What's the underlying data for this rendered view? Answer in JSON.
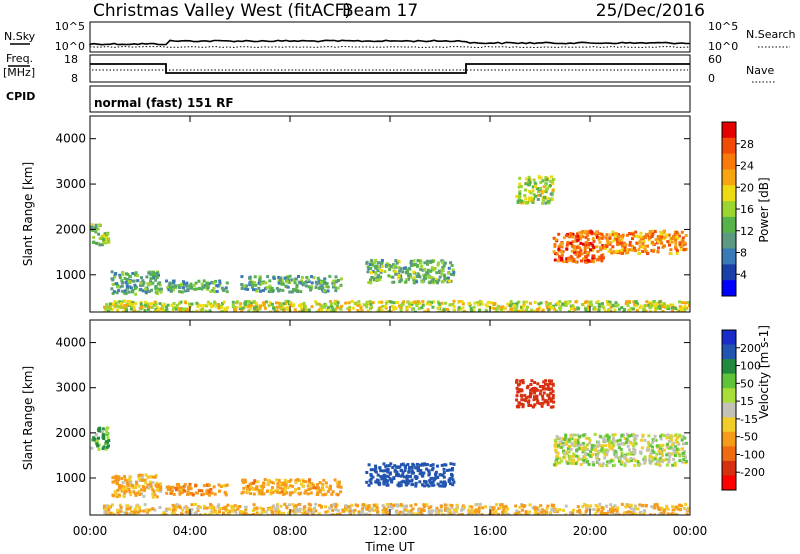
{
  "header": {
    "title": "Christmas Valley West (fitACF)",
    "beam": "Beam 17",
    "date": "25/Dec/2016"
  },
  "noise_panel": {
    "left_label": "N.Sky",
    "right_label": "N.Search",
    "left_ticks": [
      "10^5",
      "10^0"
    ],
    "right_ticks": [
      "10^5",
      "10^0"
    ]
  },
  "freq_panel": {
    "left_label_1": "Freq.",
    "left_label_2": "[MHz]",
    "right_label": "Nave",
    "left_ticks": [
      "18",
      "8"
    ],
    "right_ticks": [
      "60",
      "0"
    ]
  },
  "cpid": {
    "label": "CPID",
    "value": "normal (fast) 151 RF"
  },
  "colors": {
    "power_scale": [
      "#0000ff",
      "#1a3fa8",
      "#3a7ab8",
      "#5b9a80",
      "#56b34a",
      "#9ad531",
      "#eedb11",
      "#f6a511",
      "#f77a0a",
      "#f44a08",
      "#e50000"
    ],
    "velocity_scale": [
      "#1a2cc8",
      "#2255b0",
      "#228a3c",
      "#5fc43a",
      "#a8dd3a",
      "#c2c2b8",
      "#f3cd2a",
      "#f69a1a",
      "#f06a12",
      "#d63010",
      "#ff0000"
    ]
  },
  "chart_data": [
    {
      "type": "heatmap",
      "name": "power",
      "ylabel": "Slant Range [km]",
      "colorbar_label": "Power [dB]",
      "colorbar_ticks": [
        "4",
        "8",
        "12",
        "16",
        "20",
        "24",
        "28"
      ],
      "x_ticks": [
        "00:00",
        "04:00",
        "08:00",
        "12:00",
        "16:00",
        "20:00",
        "00:00"
      ],
      "xlim_hours": [
        0,
        24
      ],
      "y_ticks": [
        "1000",
        "2000",
        "3000",
        "4000"
      ],
      "ylim": [
        180,
        4500
      ],
      "blobs": [
        {
          "t0": 0.0,
          "t1": 0.7,
          "r0": 1650,
          "r1": 2150,
          "level": 0.45
        },
        {
          "t0": 0.8,
          "t1": 2.8,
          "r0": 600,
          "r1": 1100,
          "level": 0.35
        },
        {
          "t0": 3.0,
          "t1": 5.5,
          "r0": 650,
          "r1": 900,
          "level": 0.35
        },
        {
          "t0": 6.0,
          "t1": 10.0,
          "r0": 650,
          "r1": 1000,
          "level": 0.35
        },
        {
          "t0": 11.0,
          "t1": 14.5,
          "r0": 850,
          "r1": 1350,
          "level": 0.4
        },
        {
          "t0": 17.0,
          "t1": 18.5,
          "r0": 2600,
          "r1": 3200,
          "level": 0.5
        },
        {
          "t0": 18.5,
          "t1": 20.5,
          "r0": 1300,
          "r1": 2000,
          "level": 0.85
        },
        {
          "t0": 20.5,
          "t1": 23.8,
          "r0": 1500,
          "r1": 2000,
          "level": 0.75
        },
        {
          "t0": 0.5,
          "t1": 24.0,
          "r0": 180,
          "r1": 450,
          "level": 0.55
        }
      ]
    },
    {
      "type": "heatmap",
      "name": "velocity",
      "ylabel": "Slant Range [km]",
      "colorbar_label": "Velocity [m s-1]",
      "colorbar_ticks": [
        "200",
        "100",
        "50",
        "15",
        "-15",
        "-50",
        "-100",
        "-200"
      ],
      "x_ticks": [
        "00:00",
        "04:00",
        "08:00",
        "12:00",
        "16:00",
        "20:00",
        "00:00"
      ],
      "xlabel": "Time UT",
      "xlim_hours": [
        0,
        24
      ],
      "y_ticks": [
        "1000",
        "2000",
        "3000",
        "4000"
      ],
      "ylim": [
        180,
        4500
      ],
      "blobs": [
        {
          "t0": 0.0,
          "t1": 0.7,
          "r0": 1650,
          "r1": 2150,
          "vel": 30
        },
        {
          "t0": 0.8,
          "t1": 2.8,
          "r0": 600,
          "r1": 1100,
          "vel": -40
        },
        {
          "t0": 3.0,
          "t1": 5.5,
          "r0": 650,
          "r1": 900,
          "vel": -60
        },
        {
          "t0": 6.0,
          "t1": 10.0,
          "r0": 650,
          "r1": 1000,
          "vel": -50
        },
        {
          "t0": 11.0,
          "t1": 14.5,
          "r0": 850,
          "r1": 1350,
          "vel": 120
        },
        {
          "t0": 17.0,
          "t1": 18.5,
          "r0": 2600,
          "r1": 3200,
          "vel": -220
        },
        {
          "t0": 18.5,
          "t1": 23.8,
          "r0": 1300,
          "r1": 2000,
          "vel": 0
        },
        {
          "t0": 0.5,
          "t1": 24.0,
          "r0": 180,
          "r1": 450,
          "vel": -30
        }
      ]
    }
  ]
}
